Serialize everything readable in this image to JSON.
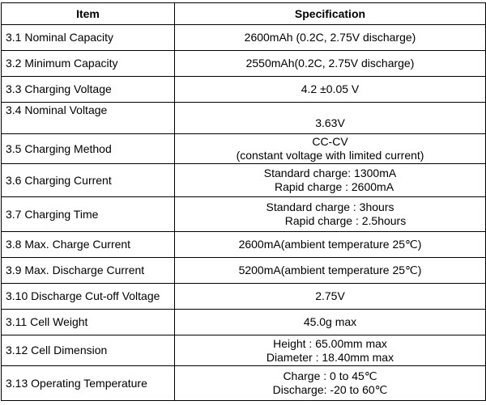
{
  "table": {
    "headers": {
      "item": "Item",
      "spec": "Specification"
    },
    "rows": [
      {
        "item": "3.1 Nominal Capacity",
        "spec": [
          "2600mAh (0.2C, 2.75V discharge)"
        ]
      },
      {
        "item": "3.2 Minimum Capacity",
        "spec": [
          "2550mAh(0.2C, 2.75V discharge)"
        ]
      },
      {
        "item": "3.3 Charging Voltage",
        "spec": [
          "4.2 ±0.05 V"
        ]
      },
      {
        "item": "3.4 Nominal Voltage",
        "spec": [
          "3.63V"
        ]
      },
      {
        "item": "3.5 Charging Method",
        "spec": [
          "CC-CV",
          "(constant voltage with limited current)"
        ]
      },
      {
        "item": "3.6 Charging Current",
        "spec": [
          "Standard charge: 1300mA",
          "Rapid charge : 2600mA"
        ]
      },
      {
        "item": "3.7 Charging Time",
        "spec": [
          "Standard charge : 3hours",
          "Rapid charge : 2.5hours"
        ]
      },
      {
        "item": "3.8 Max. Charge Current",
        "spec": [
          "2600mA(ambient temperature 25℃)"
        ]
      },
      {
        "item": "3.9 Max. Discharge Current",
        "spec": [
          "5200mA(ambient temperature 25℃)"
        ]
      },
      {
        "item": "3.10 Discharge Cut-off Voltage",
        "spec": [
          "2.75V"
        ]
      },
      {
        "item": "3.11 Cell Weight",
        "spec": [
          "45.0g max"
        ]
      },
      {
        "item": "3.12 Cell Dimension",
        "spec": [
          "Height : 65.00mm max",
          "Diameter : 18.40mm max"
        ]
      },
      {
        "item": "3.13 Operating Temperature",
        "spec": [
          "Charge : 0 to 45℃",
          "Discharge: -20 to 60℃"
        ]
      }
    ]
  }
}
